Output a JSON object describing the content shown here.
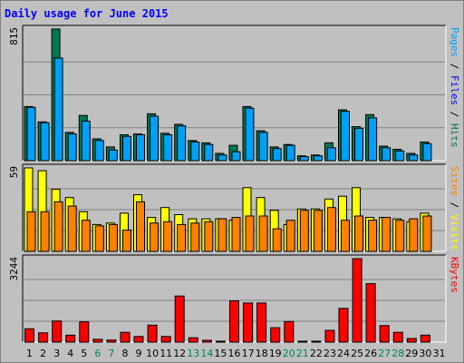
{
  "chart_data": {
    "type": "bar",
    "title": "Daily usage for June 2015",
    "x": [
      "1",
      "2",
      "3",
      "4",
      "5",
      "6",
      "7",
      "8",
      "9",
      "10",
      "11",
      "12",
      "13",
      "14",
      "15",
      "16",
      "17",
      "18",
      "19",
      "20",
      "21",
      "22",
      "23",
      "24",
      "25",
      "26",
      "27",
      "28",
      "29",
      "30",
      "31"
    ],
    "weekend_days": [
      "6",
      "7",
      "13",
      "14",
      "20",
      "21",
      "27",
      "28"
    ],
    "colors": {
      "hits": "#007850",
      "files": "#00a0f8",
      "pages": "#00a0f8",
      "visits": "#ffff00",
      "sites": "#ff8000",
      "kbytes": "#ff0000",
      "weekday_label": "#000000",
      "weekend_label": "#008060"
    },
    "panels": [
      {
        "name": "hits-files",
        "ymax": 815,
        "ymax_label": "815",
        "right_label_parts": [
          {
            "text": "Pages",
            "color": "#00a0f8"
          },
          {
            "text": " / ",
            "color": "#000000"
          },
          {
            "text": "Files",
            "color": "#0000ff"
          },
          {
            "text": " / ",
            "color": "#000000"
          },
          {
            "text": "Hits",
            "color": "#007850"
          }
        ],
        "series": [
          {
            "name": "Hits",
            "color": "#007850",
            "values": [
              335,
              240,
              815,
              175,
              280,
              135,
              85,
              160,
              165,
              290,
              170,
              225,
              125,
              110,
              45,
              95,
              335,
              185,
              85,
              100,
              30,
              35,
              110,
              315,
              210,
              285,
              90,
              70,
              45,
              115,
              0
            ]
          },
          {
            "name": "Files",
            "color": "#00a0f8",
            "values": [
              330,
              235,
              635,
              165,
              245,
              125,
              65,
              150,
              160,
              275,
              160,
              215,
              115,
              100,
              35,
              55,
              325,
              175,
              75,
              95,
              25,
              30,
              80,
              305,
              200,
              265,
              80,
              60,
              35,
              105,
              0
            ]
          }
        ]
      },
      {
        "name": "visits-sites",
        "ymax": 59,
        "ymax_label": "59",
        "right_label_parts": [
          {
            "text": "Sites",
            "color": "#ff8000"
          },
          {
            "text": " / ",
            "color": "#000000"
          },
          {
            "text": "Visits",
            "color": "#ffff00"
          }
        ],
        "series": [
          {
            "name": "Visits",
            "color": "#ffff00",
            "values": [
              59,
              57,
              44,
              38,
              28,
              19,
              20,
              27,
              40,
              24,
              31,
              26,
              23,
              23,
              23,
              22,
              45,
              38,
              29,
              19,
              30,
              30,
              37,
              39,
              45,
              24,
              24,
              23,
              21,
              27,
              0
            ]
          },
          {
            "name": "Sites",
            "color": "#ff8000",
            "values": [
              28,
              28,
              35,
              32,
              22,
              18,
              19,
              15,
              35,
              20,
              21,
              19,
              20,
              21,
              23,
              24,
              25,
              25,
              16,
              22,
              29,
              29,
              31,
              22,
              25,
              22,
              24,
              22,
              23,
              25,
              0
            ]
          }
        ]
      },
      {
        "name": "kbytes",
        "ymax": 3244,
        "ymax_label": "3244",
        "right_label_parts": [
          {
            "text": "KBytes",
            "color": "#ff0000"
          }
        ],
        "series": [
          {
            "name": "KBytes",
            "color": "#ff0000",
            "values": [
              520,
              360,
              820,
              270,
              790,
              110,
              80,
              380,
              220,
              660,
              220,
              1790,
              170,
              70,
              35,
              1600,
              1520,
              1520,
              560,
              800,
              25,
              25,
              460,
              1310,
              3244,
              2270,
              640,
              380,
              140,
              270,
              0
            ]
          }
        ]
      }
    ]
  }
}
